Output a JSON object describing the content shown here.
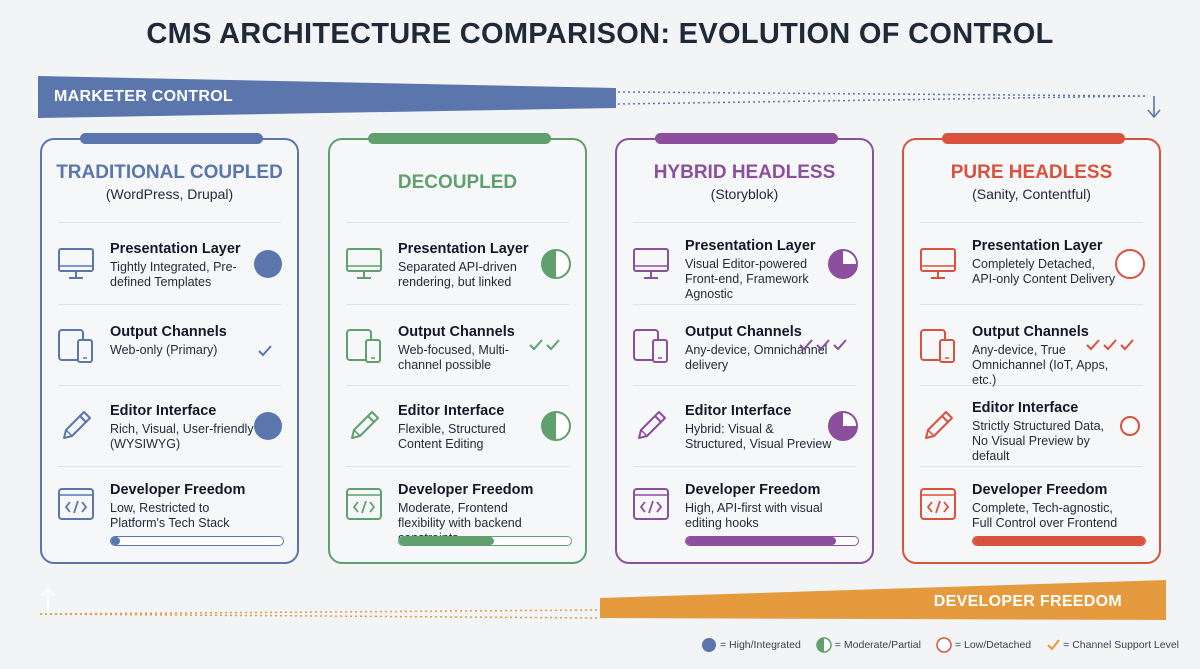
{
  "title": "CMS ARCHITECTURE COMPARISON: EVOLUTION OF CONTROL",
  "marketer_label": "MARKETER CONTROL",
  "developer_label": "DEVELOPER FREEDOM",
  "colors": {
    "traditional": "#5a76ad",
    "decoupled": "#5fa06e",
    "hybrid": "#8b4f9e",
    "pure": "#d9523d",
    "marketer_band": "#5a76ad",
    "developer_band": "#e49a3d"
  },
  "row_titles": {
    "presentation": "Presentation Layer",
    "output": "Output Channels",
    "editor": "Editor Interface",
    "developer": "Developer Freedom"
  },
  "cards": [
    {
      "name": "TRADITIONAL COUPLED",
      "subtitle": "(WordPress, Drupal)",
      "presentation": "Tightly Integrated, Pre-defined Templates",
      "presentation_level": 1,
      "output": "Web-only (Primary)",
      "output_checks": 1,
      "editor": "Rich, Visual, User-friendly (WYSIWYG)",
      "editor_level": 1,
      "developer": "Low, Restricted to Platform's Tech Stack",
      "developer_level": 0.05
    },
    {
      "name": "DECOUPLED",
      "subtitle": "",
      "presentation": "Separated API-driven rendering, but linked",
      "presentation_level": 0.5,
      "output": "Web-focused, Multi-channel possible",
      "output_checks": 2,
      "editor": "Flexible, Structured Content Editing",
      "editor_level": 0.5,
      "developer": "Moderate, Frontend flexibility with backend constraints",
      "developer_level": 0.55
    },
    {
      "name": "HYBRID HEADLESS",
      "subtitle": "(Storyblok)",
      "presentation": "Visual Editor-powered Front-end, Framework Agnostic",
      "presentation_level": 0.75,
      "output": "Any-device, Omnichannel delivery",
      "output_checks": 3,
      "editor": "Hybrid: Visual & Structured, Visual Preview",
      "editor_level": 0.75,
      "developer": "High, API-first with visual editing hooks",
      "developer_level": 0.87
    },
    {
      "name": "PURE HEADLESS",
      "subtitle": "(Sanity, Contentful)",
      "presentation": "Completely Detached, API-only Content Delivery",
      "presentation_level": 0,
      "output": "Any-device, True Omnichannel (IoT, Apps, etc.)",
      "output_checks": 3,
      "editor": "Strictly Structured Data, No Visual Preview by default",
      "editor_level": 0,
      "developer": "Complete, Tech-agnostic, Full Control over Frontend",
      "developer_level": 1
    }
  ],
  "legend": [
    {
      "icon": "full-circle-icon",
      "label": "= High/Integrated"
    },
    {
      "icon": "half-circle-icon",
      "label": "= Moderate/Partial"
    },
    {
      "icon": "empty-circle-icon",
      "label": "= Low/Detached"
    },
    {
      "icon": "check-icon",
      "label": "= Channel Support Level"
    }
  ]
}
